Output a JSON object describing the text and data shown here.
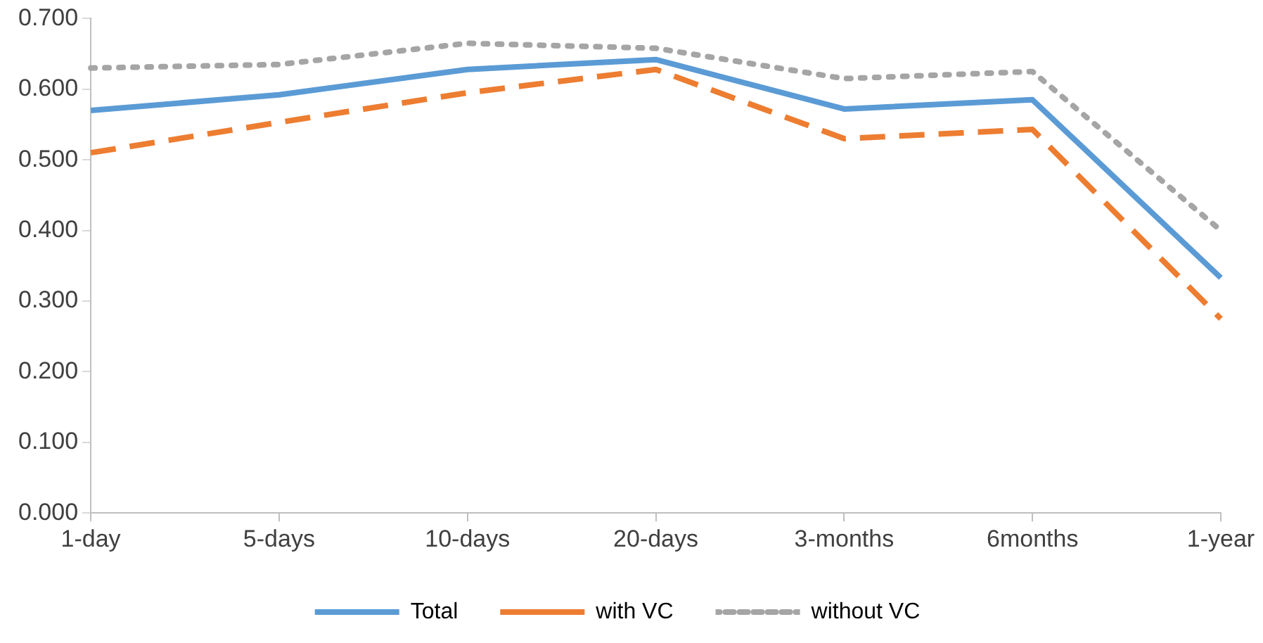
{
  "chart_data": {
    "type": "line",
    "categories": [
      "1-day",
      "5-days",
      "10-days",
      "20-days",
      "3-months",
      "6months",
      "1-year"
    ],
    "series": [
      {
        "name": "Total",
        "color": "#5b9bd5",
        "line_style": "solid",
        "values": [
          0.57,
          0.592,
          0.628,
          0.642,
          0.572,
          0.585,
          0.333
        ]
      },
      {
        "name": "with VC",
        "color": "#ed7d31",
        "line_style": "dashed",
        "values": [
          0.51,
          0.553,
          0.595,
          0.628,
          0.53,
          0.543,
          0.275
        ]
      },
      {
        "name": "without VC",
        "color": "#a5a5a5",
        "line_style": "dotted",
        "values": [
          0.63,
          0.635,
          0.665,
          0.658,
          0.615,
          0.625,
          0.4
        ]
      }
    ],
    "ylim": [
      0,
      0.7
    ],
    "yticks": [
      {
        "value": 0,
        "label": "0.000"
      },
      {
        "value": 0.1,
        "label": "0.100"
      },
      {
        "value": 0.2,
        "label": "0.200"
      },
      {
        "value": 0.3,
        "label": "0.300"
      },
      {
        "value": 0.4,
        "label": "0.400"
      },
      {
        "value": 0.5,
        "label": "0.500"
      },
      {
        "value": 0.6,
        "label": "0.600"
      },
      {
        "value": 0.7,
        "label": "0.700"
      }
    ],
    "grid": false,
    "legend": "bottom",
    "marker": "none"
  }
}
